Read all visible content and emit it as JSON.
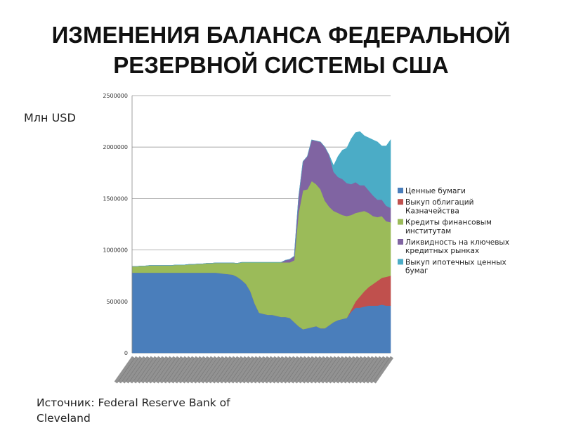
{
  "title": {
    "line1": "ИЗМЕНЕНИЯ БАЛАНСА ФЕДЕРАЛЬНОЙ",
    "line2": "РЕЗЕРВНОЙ СИСТЕМЫ США"
  },
  "unit_label": "Млн USD",
  "source": "Источник: Federal Reserve Bank of Cleveland",
  "chart_data": {
    "type": "area",
    "stacked": true,
    "ylim": [
      0,
      2500000
    ],
    "yticks": [
      "2500000",
      "2000000",
      "1500000",
      "1000000",
      "500000",
      "0"
    ],
    "grid": true,
    "legend_position": "right",
    "x_count": 60,
    "series": [
      {
        "name": "Ценные бумаги",
        "color": "#4a7ebb",
        "values": [
          780000,
          780000,
          780000,
          780000,
          780000,
          780000,
          780000,
          780000,
          780000,
          780000,
          780000,
          780000,
          780000,
          780000,
          780000,
          780000,
          780000,
          780000,
          780000,
          780000,
          775000,
          770000,
          765000,
          760000,
          740000,
          710000,
          670000,
          600000,
          480000,
          390000,
          380000,
          370000,
          370000,
          360000,
          350000,
          350000,
          340000,
          300000,
          260000,
          230000,
          240000,
          250000,
          260000,
          240000,
          240000,
          270000,
          300000,
          320000,
          330000,
          340000,
          400000,
          440000,
          440000,
          450000,
          460000,
          460000,
          460000,
          470000,
          460000,
          460000
        ]
      },
      {
        "name": "Выкуп облигаций Казначейства",
        "color": "#c0504d",
        "values": [
          0,
          0,
          0,
          0,
          0,
          0,
          0,
          0,
          0,
          0,
          0,
          0,
          0,
          0,
          0,
          0,
          0,
          0,
          0,
          0,
          0,
          0,
          0,
          0,
          0,
          0,
          0,
          0,
          0,
          0,
          0,
          0,
          0,
          0,
          0,
          0,
          0,
          0,
          0,
          0,
          0,
          0,
          0,
          0,
          0,
          0,
          0,
          0,
          0,
          0,
          20000,
          60000,
          110000,
          150000,
          180000,
          210000,
          240000,
          260000,
          280000,
          290000
        ]
      },
      {
        "name": "Кредиты финансовым институтам",
        "color": "#9bbb59",
        "values": [
          60000,
          60000,
          65000,
          65000,
          70000,
          70000,
          70000,
          70000,
          70000,
          70000,
          75000,
          75000,
          75000,
          80000,
          80000,
          85000,
          85000,
          90000,
          90000,
          95000,
          100000,
          105000,
          110000,
          115000,
          130000,
          170000,
          210000,
          280000,
          400000,
          490000,
          500000,
          510000,
          510000,
          520000,
          530000,
          530000,
          540000,
          600000,
          1100000,
          1350000,
          1350000,
          1420000,
          1380000,
          1350000,
          1240000,
          1150000,
          1080000,
          1040000,
          1010000,
          990000,
          920000,
          860000,
          820000,
          780000,
          720000,
          660000,
          620000,
          600000,
          540000,
          520000
        ]
      },
      {
        "name": "Ликвидность на ключевых кредитных рынках",
        "color": "#8064a2",
        "values": [
          0,
          0,
          0,
          0,
          0,
          0,
          0,
          0,
          0,
          0,
          0,
          0,
          0,
          0,
          0,
          0,
          0,
          0,
          0,
          0,
          0,
          0,
          0,
          0,
          0,
          0,
          0,
          0,
          0,
          0,
          0,
          0,
          0,
          0,
          0,
          20000,
          30000,
          40000,
          150000,
          280000,
          320000,
          400000,
          420000,
          460000,
          520000,
          500000,
          380000,
          350000,
          350000,
          320000,
          300000,
          300000,
          260000,
          250000,
          220000,
          200000,
          170000,
          160000,
          150000,
          140000
        ]
      },
      {
        "name": "Выкуп ипотечных ценных бумаг",
        "color": "#4bacc6",
        "values": [
          0,
          0,
          0,
          0,
          0,
          0,
          0,
          0,
          0,
          0,
          0,
          0,
          0,
          0,
          0,
          0,
          0,
          0,
          0,
          0,
          0,
          0,
          0,
          0,
          0,
          0,
          0,
          0,
          0,
          0,
          0,
          0,
          0,
          0,
          0,
          0,
          0,
          0,
          0,
          0,
          0,
          0,
          0,
          0,
          0,
          0,
          60000,
          200000,
          280000,
          340000,
          440000,
          480000,
          520000,
          480000,
          510000,
          540000,
          560000,
          520000,
          580000,
          660000
        ]
      }
    ]
  }
}
